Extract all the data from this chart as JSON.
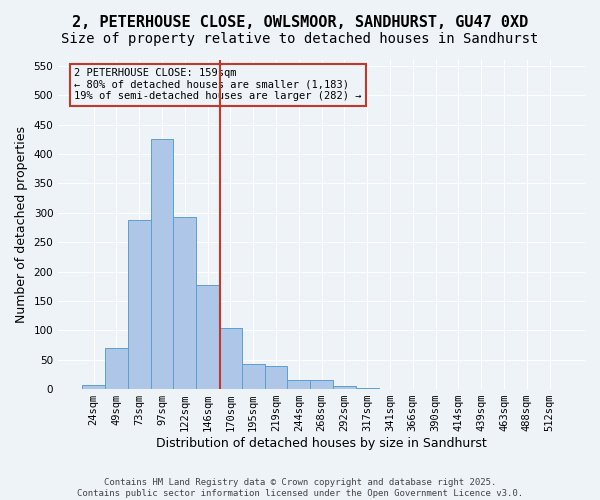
{
  "title_line1": "2, PETERHOUSE CLOSE, OWLSMOOR, SANDHURST, GU47 0XD",
  "title_line2": "Size of property relative to detached houses in Sandhurst",
  "xlabel": "Distribution of detached houses by size in Sandhurst",
  "ylabel": "Number of detached properties",
  "bin_labels": [
    "24sqm",
    "49sqm",
    "73sqm",
    "97sqm",
    "122sqm",
    "146sqm",
    "170sqm",
    "195sqm",
    "219sqm",
    "244sqm",
    "268sqm",
    "292sqm",
    "317sqm",
    "341sqm",
    "366sqm",
    "390sqm",
    "414sqm",
    "439sqm",
    "463sqm",
    "488sqm",
    "512sqm"
  ],
  "bar_values": [
    7,
    70,
    288,
    425,
    292,
    177,
    104,
    42,
    40,
    16,
    16,
    6,
    1,
    0,
    0,
    0,
    0,
    0,
    0,
    0,
    0
  ],
  "bar_color": "#aec6e8",
  "bar_edge_color": "#5a9fd4",
  "vline_color": "#c0392b",
  "vline_pos": 5.54,
  "annotation_text": "2 PETERHOUSE CLOSE: 159sqm\n← 80% of detached houses are smaller (1,183)\n19% of semi-detached houses are larger (282) →",
  "annotation_box_color": "#c0392b",
  "ylim": [
    0,
    560
  ],
  "yticks": [
    0,
    50,
    100,
    150,
    200,
    250,
    300,
    350,
    400,
    450,
    500,
    550
  ],
  "footer_text": "Contains HM Land Registry data © Crown copyright and database right 2025.\nContains public sector information licensed under the Open Government Licence v3.0.",
  "bg_color": "#eef3f8",
  "grid_color": "#ffffff",
  "title_fontsize": 11,
  "subtitle_fontsize": 10,
  "axis_label_fontsize": 9,
  "tick_fontsize": 7.5,
  "annotation_fontsize": 7.5,
  "footer_fontsize": 6.5
}
